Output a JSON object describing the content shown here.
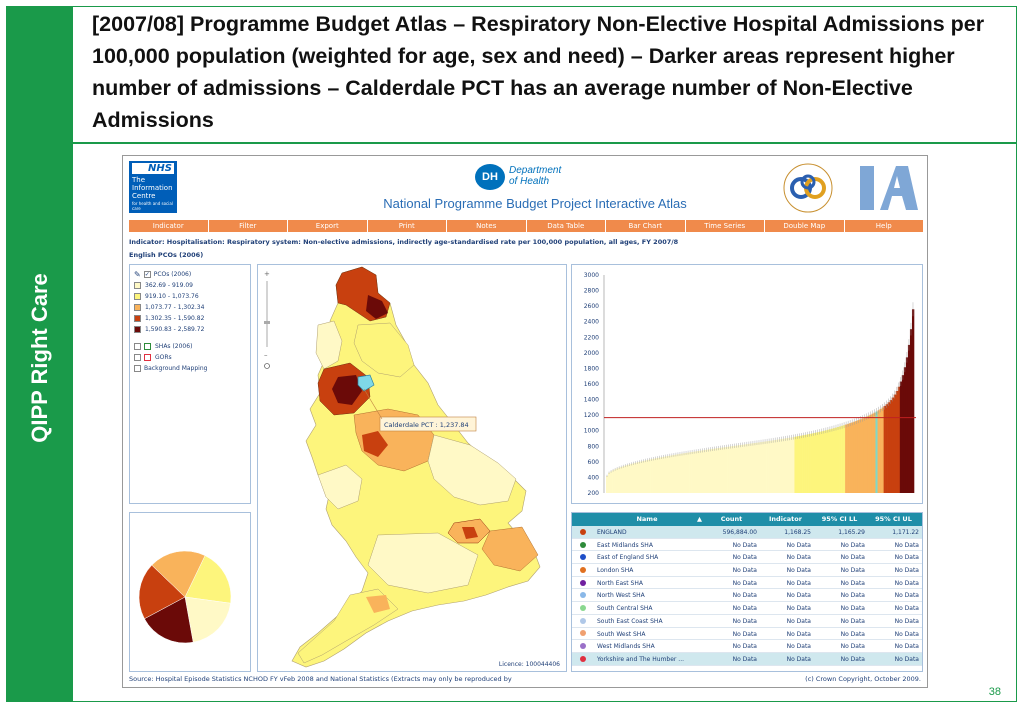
{
  "slide": {
    "title": "[2007/08] Programme Budget Atlas – Respiratory Non-Elective Hospital Admissions per 100,000 population (weighted for age, sex and need) – Darker areas represent higher number of admissions – Calderdale PCT has an average number of Non-Elective Admissions",
    "sidebar_label": "QIPP Right Care",
    "page_number": "38",
    "accent_color": "#1a9a4a"
  },
  "atlas": {
    "nhs_logo": {
      "nhs": "NHS",
      "ic": "The Information Centre",
      "ic_sub": "for health and social care"
    },
    "dh_logo": {
      "mark": "DH",
      "line1": "Department",
      "line2": "of Health"
    },
    "title": "National Programme Budget Project Interactive Atlas",
    "menu": [
      "Indicator",
      "Filter",
      "Export",
      "Print",
      "Notes",
      "Data Table",
      "Bar Chart",
      "Time Series",
      "Double Map",
      "Help"
    ],
    "indicator_text": "Indicator: Hospitalisation: Respiratory system: Non-elective admissions, indirectly age-standardised rate per 100,000 population, all ages, FY 2007/8",
    "subtitle": "English PCOs (2006)",
    "legend": {
      "layer_label": "PCOs (2006)",
      "classes": [
        {
          "label": "362.69 - 919.09",
          "color": "#fff9c6"
        },
        {
          "label": "919.10 - 1,073.76",
          "color": "#fdf57c"
        },
        {
          "label": "1,073.77 - 1,302.34",
          "color": "#f9b35b"
        },
        {
          "label": "1,302.35 - 1,590.82",
          "color": "#c8400f"
        },
        {
          "label": "1,590.83 - 2,589.72",
          "color": "#6b0a08"
        }
      ],
      "other_layers": [
        "SHAs (2006)",
        "GORs",
        "Background Mapping"
      ]
    },
    "map": {
      "callout": "Calderdale PCT : 1,237.84",
      "licence": "Licence: 100044406"
    },
    "pie_chart": {
      "slices": [
        {
          "value": 20,
          "color": "#fdf57c"
        },
        {
          "value": 20,
          "color": "#fff9c6"
        },
        {
          "value": 20,
          "color": "#6b0a08"
        },
        {
          "value": 20,
          "color": "#c8400f"
        },
        {
          "value": 20,
          "color": "#f9b35b"
        }
      ]
    },
    "table": {
      "headers": [
        "Name",
        "Count",
        "Indicator",
        "95% CI LL",
        "95% CI UL"
      ],
      "rows": [
        {
          "name": "ENGLAND",
          "count": "596,884.00",
          "indicator": "1,168.25",
          "ll": "1,165.29",
          "ul": "1,171.22",
          "dot": "#c8400f"
        },
        {
          "name": "East Midlands SHA",
          "count": "No Data",
          "indicator": "No Data",
          "ll": "No Data",
          "ul": "No Data",
          "dot": "#2e8b3a"
        },
        {
          "name": "East of England SHA",
          "count": "No Data",
          "indicator": "No Data",
          "ll": "No Data",
          "ul": "No Data",
          "dot": "#1f4fc8"
        },
        {
          "name": "London SHA",
          "count": "No Data",
          "indicator": "No Data",
          "ll": "No Data",
          "ul": "No Data",
          "dot": "#e07020"
        },
        {
          "name": "North East SHA",
          "count": "No Data",
          "indicator": "No Data",
          "ll": "No Data",
          "ul": "No Data",
          "dot": "#7020a0"
        },
        {
          "name": "North West SHA",
          "count": "No Data",
          "indicator": "No Data",
          "ll": "No Data",
          "ul": "No Data",
          "dot": "#8ab8e8"
        },
        {
          "name": "South Central SHA",
          "count": "No Data",
          "indicator": "No Data",
          "ll": "No Data",
          "ul": "No Data",
          "dot": "#8ad890"
        },
        {
          "name": "South East Coast SHA",
          "count": "No Data",
          "indicator": "No Data",
          "ll": "No Data",
          "ul": "No Data",
          "dot": "#b0c8e8"
        },
        {
          "name": "South West SHA",
          "count": "No Data",
          "indicator": "No Data",
          "ll": "No Data",
          "ul": "No Data",
          "dot": "#f0a070"
        },
        {
          "name": "West Midlands SHA",
          "count": "No Data",
          "indicator": "No Data",
          "ll": "No Data",
          "ul": "No Data",
          "dot": "#9a70c8"
        },
        {
          "name": "Yorkshire and The Humber ...",
          "count": "No Data",
          "indicator": "No Data",
          "ll": "No Data",
          "ul": "No Data",
          "dot": "#e03040"
        }
      ]
    },
    "footer_source": "Source: Hospital Episode Statistics NCHOD FY vFeb 2008 and National Statistics (Extracts may only be reproduced by",
    "footer_copyright": "(c) Crown Copyright, October 2009."
  },
  "chart_data": {
    "type": "bar",
    "ylim": [
      200,
      3000
    ],
    "yticks": [
      "3000",
      "2800",
      "2600",
      "2400",
      "2200",
      "2000",
      "1800",
      "1600",
      "1400",
      "1200",
      "1000",
      "800",
      "600",
      "400",
      "200"
    ],
    "reference_value": 1168.25,
    "highlight_value": 1237.84,
    "class_breaks": [
      919.09,
      1073.76,
      1302.34,
      1590.82,
      2589.72
    ],
    "class_colors": [
      "#fff9c6",
      "#fdf57c",
      "#f9b35b",
      "#c8400f",
      "#6b0a08"
    ],
    "min_value": 362.69,
    "max_value": 2589.72,
    "bar_count": 152
  }
}
